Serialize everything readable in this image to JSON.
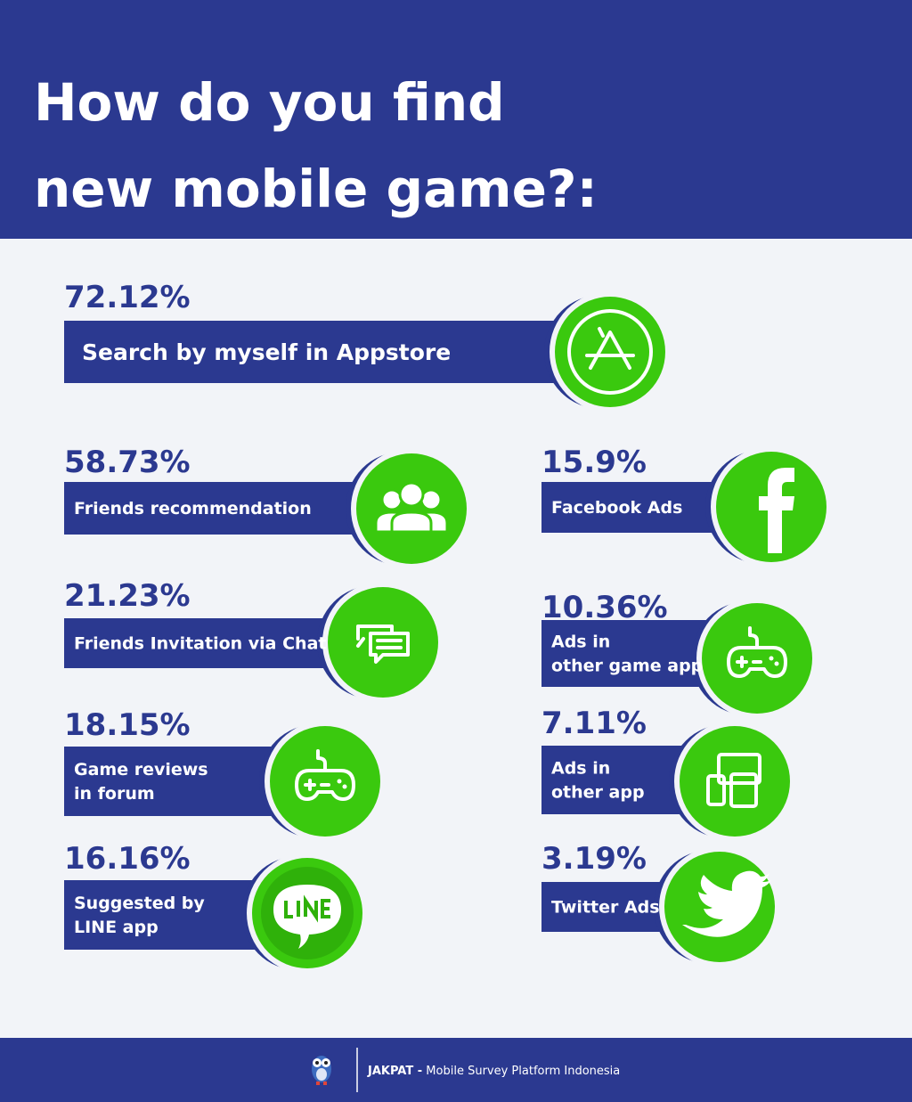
{
  "header": {
    "title": [
      "How do you find",
      "new mobile game?:"
    ]
  },
  "items": [
    {
      "percent": "72.12%",
      "label": [
        "Search by myself in Appstore"
      ]
    },
    {
      "percent": "58.73%",
      "label": [
        "Friends recommendation"
      ]
    },
    {
      "percent": "21.23%",
      "label": [
        "Friends Invitation via Chat"
      ]
    },
    {
      "percent": "18.15%",
      "label": [
        "Game reviews",
        "in forum"
      ]
    },
    {
      "percent": "16.16%",
      "label": [
        "Suggested by",
        "LINE app"
      ]
    },
    {
      "percent": "15.9%",
      "label": [
        "Facebook Ads"
      ]
    },
    {
      "percent": "10.36%",
      "label": [
        "Ads in",
        "other game app"
      ]
    },
    {
      "percent": "7.11%",
      "label": [
        "Ads in",
        "other app"
      ]
    },
    {
      "percent": "3.19%",
      "label": [
        "Twitter Ads"
      ]
    }
  ],
  "footer": {
    "brand": "JAKPAT -",
    "tagline": "Mobile Survey Platform Indonesia"
  }
}
